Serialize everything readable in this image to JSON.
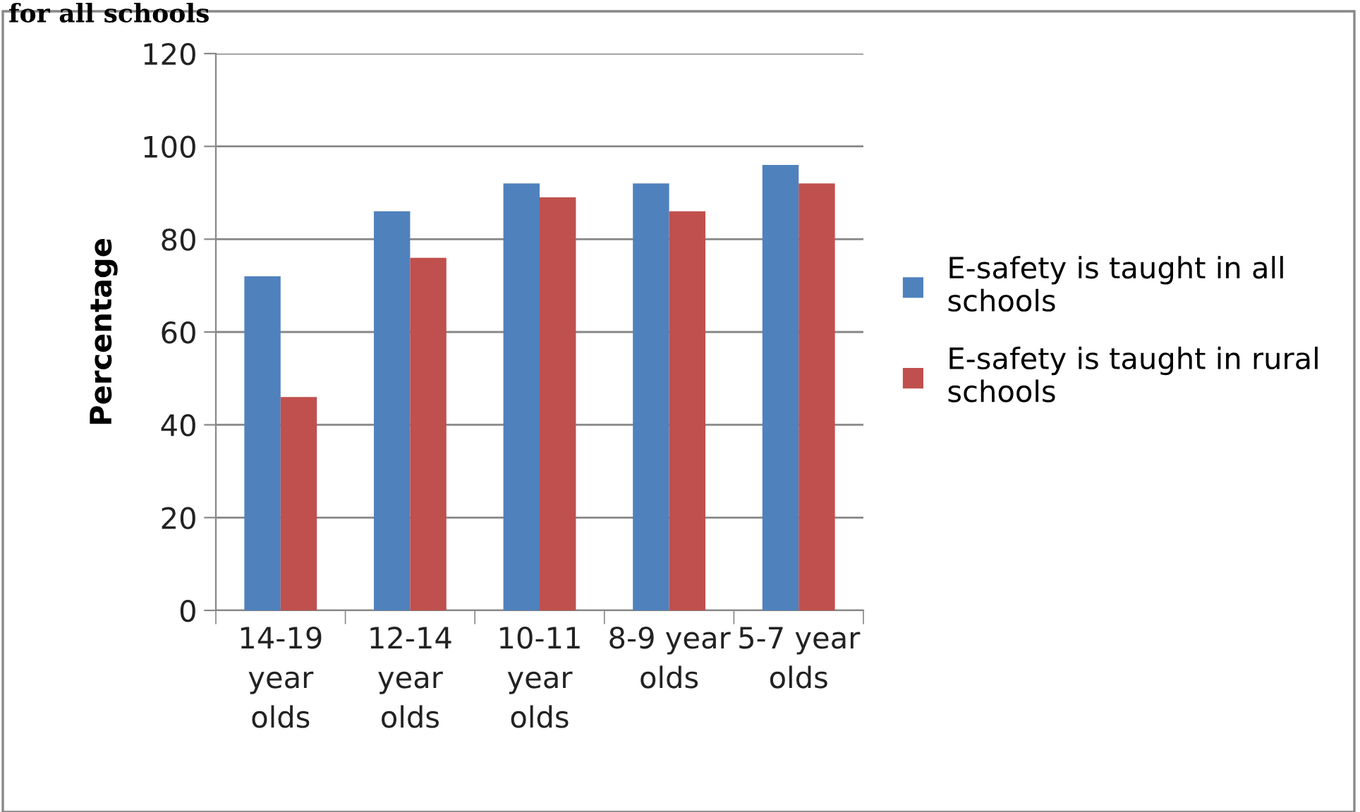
{
  "chart_data": {
    "type": "bar",
    "ylabel": "Percentage",
    "annotations": [
      "for all schools"
    ],
    "categories": [
      "14-19\nyear\nolds",
      "12-14\nyear\nolds",
      "10-11\nyear\nolds",
      "8-9 year\nolds",
      "5-7 year\nolds"
    ],
    "series": [
      {
        "name": "E-safety is taught in all\nschools",
        "color": "#4f81bd",
        "values": [
          72,
          86,
          92,
          92,
          96
        ]
      },
      {
        "name": "E-safety is taught in rural\nschools",
        "color": "#c0504d",
        "values": [
          46,
          76,
          89,
          86,
          92
        ]
      }
    ],
    "ylim": [
      0,
      120
    ],
    "yticks": [
      0,
      20,
      40,
      60,
      80,
      100,
      120
    ],
    "grid": "y",
    "legend": "right"
  }
}
